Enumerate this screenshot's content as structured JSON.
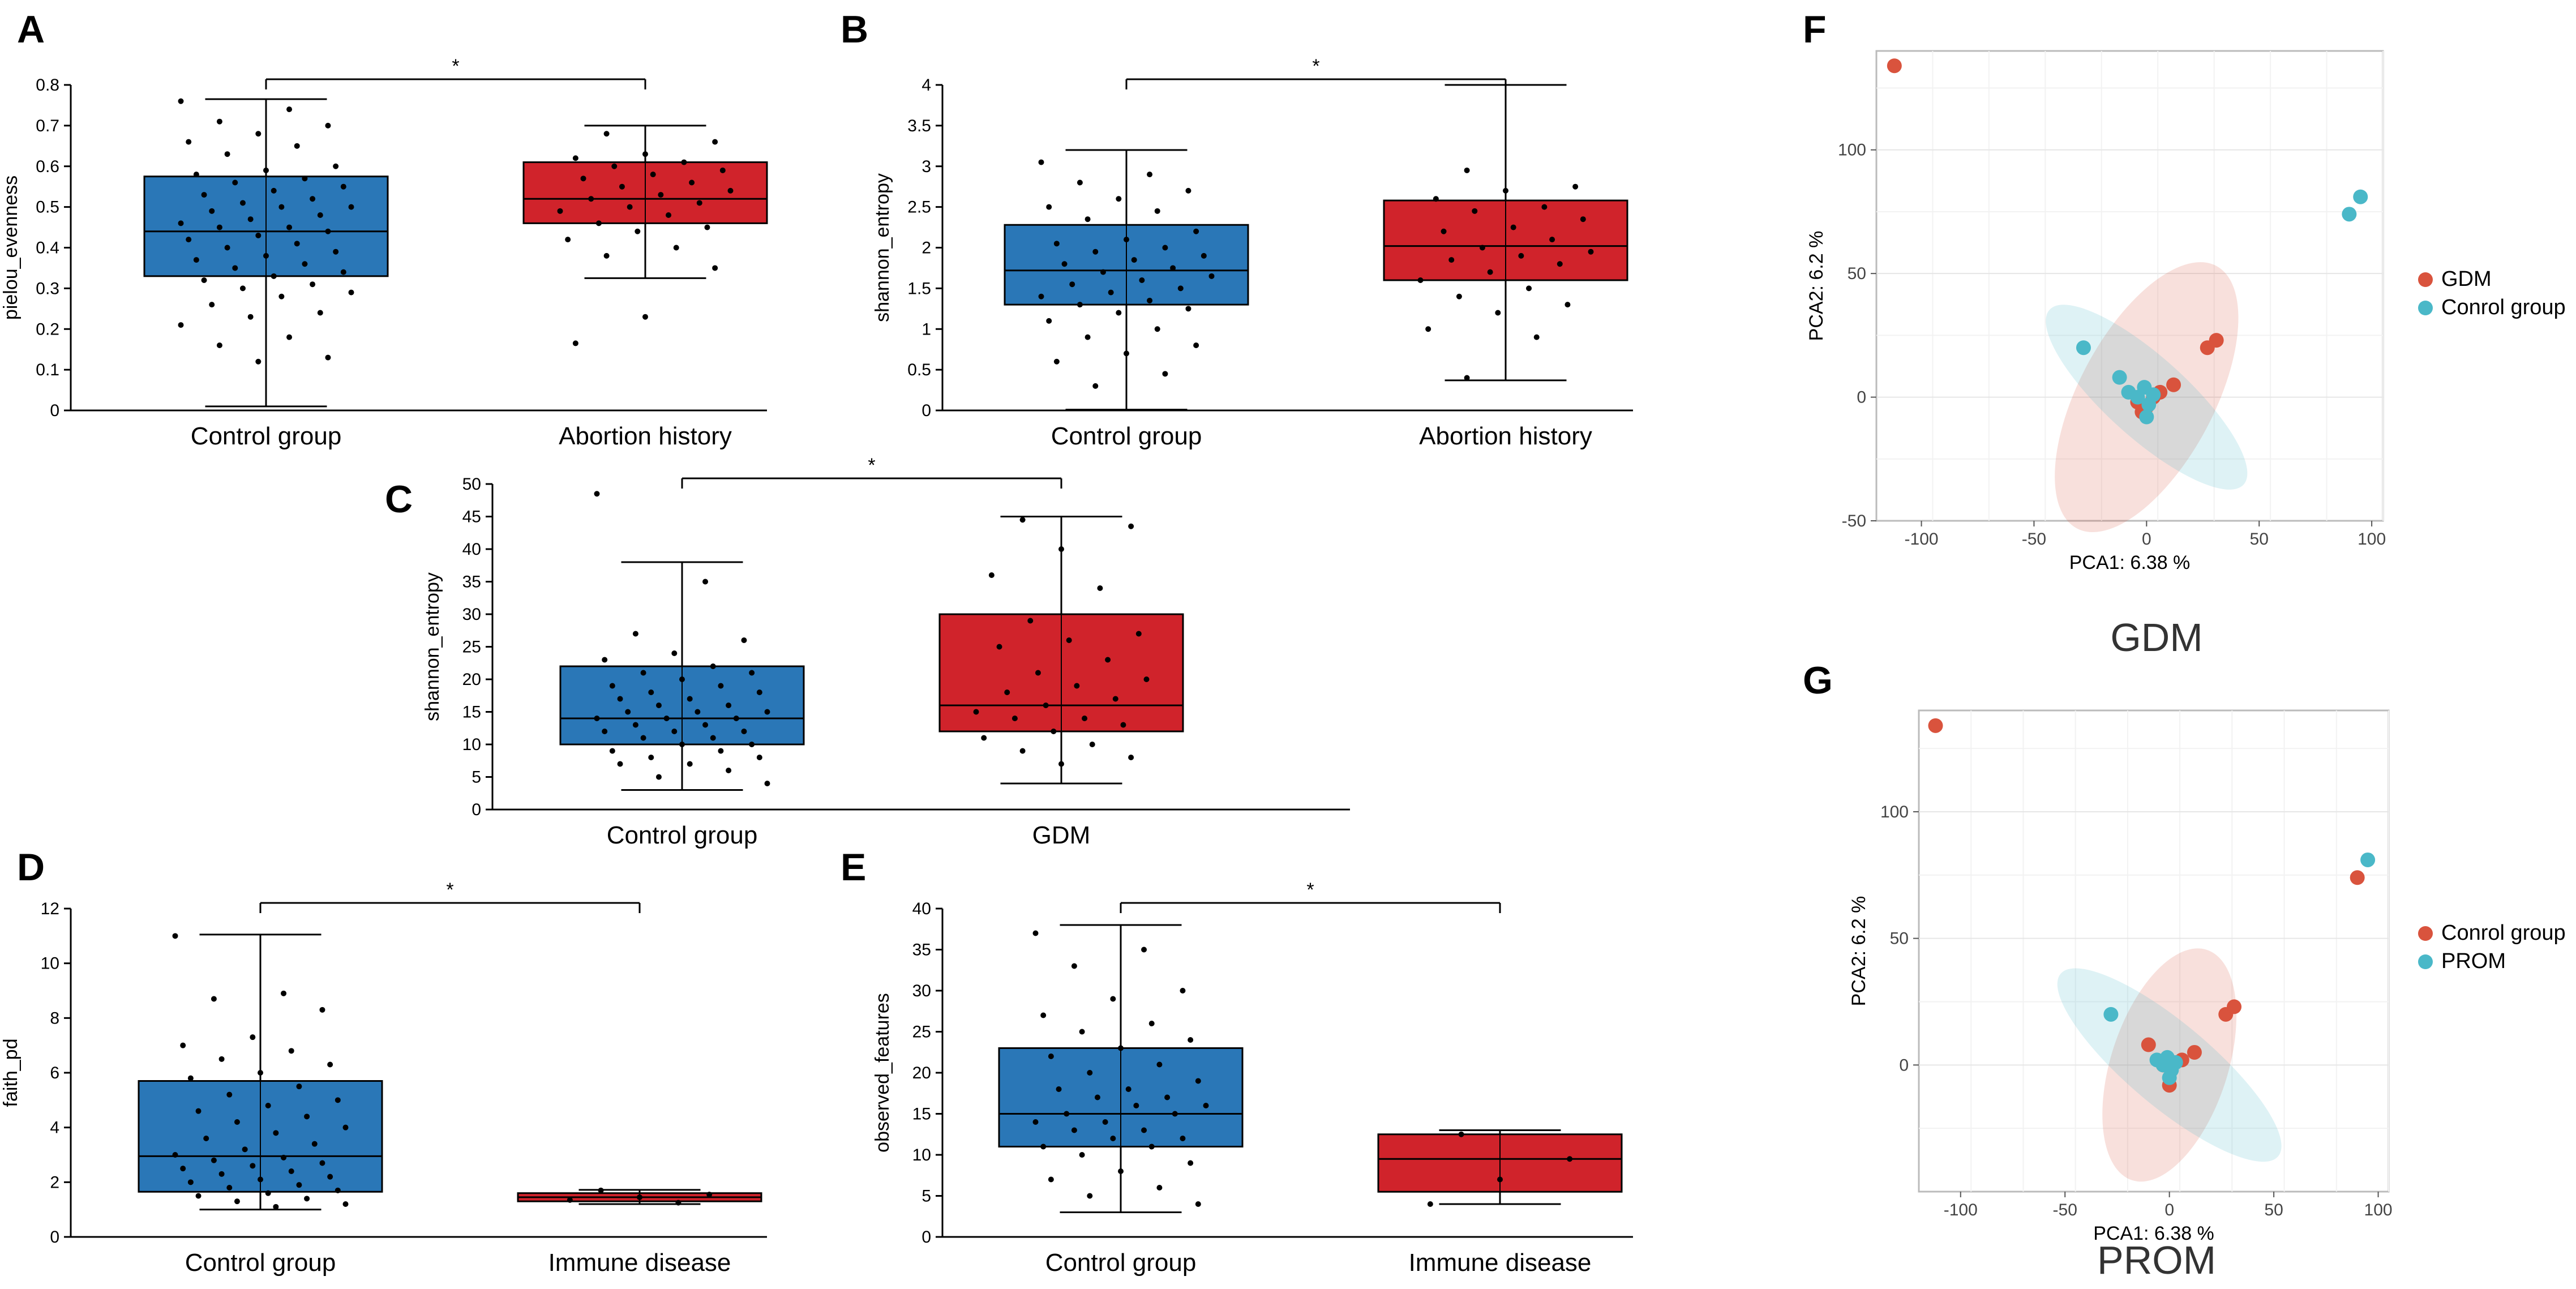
{
  "colors": {
    "control_blue": "#2a77b7",
    "case_red": "#d0232b",
    "pca_red": "#d9533d",
    "pca_teal": "#4ab8c8"
  },
  "chart_data": [
    {
      "id": "A",
      "type": "box",
      "label": "A",
      "ylabel": "pielou_evenness",
      "ylim": [
        0,
        0.8
      ],
      "yticks": [
        0,
        0.1,
        0.2,
        0.3,
        0.4,
        0.5,
        0.6,
        0.7,
        0.8
      ],
      "significance": "*",
      "groups": [
        {
          "name": "Control group",
          "color": "#2a77b7",
          "min": 0.01,
          "q1": 0.33,
          "median": 0.44,
          "q3": 0.575,
          "max": 0.765,
          "points": [
            0.76,
            0.74,
            0.71,
            0.7,
            0.68,
            0.66,
            0.65,
            0.63,
            0.6,
            0.59,
            0.58,
            0.57,
            0.56,
            0.55,
            0.54,
            0.53,
            0.52,
            0.51,
            0.5,
            0.5,
            0.49,
            0.48,
            0.47,
            0.46,
            0.45,
            0.45,
            0.44,
            0.43,
            0.42,
            0.41,
            0.4,
            0.39,
            0.38,
            0.37,
            0.36,
            0.35,
            0.34,
            0.33,
            0.32,
            0.31,
            0.3,
            0.29,
            0.28,
            0.26,
            0.24,
            0.23,
            0.21,
            0.18,
            0.16,
            0.13,
            0.12
          ]
        },
        {
          "name": "Abortion history",
          "color": "#d0232b",
          "min": 0.325,
          "q1": 0.46,
          "median": 0.52,
          "q3": 0.61,
          "max": 0.7,
          "points": [
            0.68,
            0.66,
            0.63,
            0.62,
            0.61,
            0.6,
            0.59,
            0.58,
            0.57,
            0.56,
            0.55,
            0.54,
            0.53,
            0.52,
            0.51,
            0.5,
            0.49,
            0.48,
            0.46,
            0.45,
            0.44,
            0.42,
            0.4,
            0.38,
            0.35,
            0.23,
            0.165
          ]
        }
      ]
    },
    {
      "id": "B",
      "type": "box",
      "label": "B",
      "ylabel": "shannon_entropy",
      "ylim": [
        0,
        4
      ],
      "yticks": [
        0,
        0.5,
        1,
        1.5,
        2,
        2.5,
        3,
        3.5,
        4
      ],
      "significance": "*",
      "groups": [
        {
          "name": "Control group",
          "color": "#2a77b7",
          "min": 0.01,
          "q1": 1.3,
          "median": 1.72,
          "q3": 2.28,
          "max": 3.2,
          "points": [
            3.05,
            2.9,
            2.8,
            2.7,
            2.6,
            2.5,
            2.45,
            2.35,
            2.2,
            2.1,
            2.05,
            2.0,
            1.95,
            1.9,
            1.85,
            1.8,
            1.75,
            1.7,
            1.65,
            1.6,
            1.55,
            1.5,
            1.45,
            1.4,
            1.35,
            1.3,
            1.25,
            1.2,
            1.1,
            1.0,
            0.9,
            0.8,
            0.7,
            0.6,
            0.45,
            0.3
          ]
        },
        {
          "name": "Abortion history",
          "color": "#d0232b",
          "min": 0.37,
          "q1": 1.6,
          "median": 2.02,
          "q3": 2.58,
          "max": 4.0,
          "points": [
            2.95,
            2.75,
            2.7,
            2.6,
            2.5,
            2.45,
            2.35,
            2.25,
            2.2,
            2.1,
            2.0,
            1.95,
            1.9,
            1.85,
            1.8,
            1.7,
            1.6,
            1.5,
            1.4,
            1.3,
            1.2,
            1.0,
            0.9,
            0.4
          ]
        }
      ]
    },
    {
      "id": "C",
      "type": "box",
      "label": "C",
      "ylabel": "shannon_entropy",
      "ylim": [
        0,
        50
      ],
      "yticks": [
        0,
        5,
        10,
        15,
        20,
        25,
        30,
        35,
        40,
        45,
        50
      ],
      "significance": "*",
      "groups": [
        {
          "name": "Control group",
          "color": "#2a77b7",
          "min": 3,
          "q1": 10,
          "median": 14,
          "q3": 22,
          "max": 38,
          "points": [
            48.5,
            35,
            27,
            26,
            24,
            23,
            22,
            21,
            21,
            20,
            19,
            19,
            18,
            18,
            17,
            17,
            16,
            16,
            15,
            15,
            15,
            14,
            14,
            14,
            13,
            13,
            12,
            12,
            12,
            11,
            11,
            10,
            10,
            9,
            9,
            8,
            8,
            7,
            7,
            6,
            5,
            4
          ]
        },
        {
          "name": "GDM",
          "color": "#d0232b",
          "min": 4,
          "q1": 12,
          "median": 16,
          "q3": 30,
          "max": 45,
          "points": [
            44.5,
            43.5,
            40,
            36,
            34,
            29,
            27,
            26,
            25,
            23,
            21,
            20,
            19,
            18,
            17,
            16,
            15,
            14,
            14,
            13,
            12,
            11,
            10,
            9,
            8,
            7
          ]
        }
      ]
    },
    {
      "id": "D",
      "type": "box",
      "label": "D",
      "ylabel": "faith_pd",
      "ylim": [
        0,
        12
      ],
      "yticks": [
        0,
        2,
        4,
        6,
        8,
        10,
        12
      ],
      "significance": "*",
      "groups": [
        {
          "name": "Control group",
          "color": "#2a77b7",
          "min": 1.0,
          "q1": 1.65,
          "median": 2.95,
          "q3": 5.7,
          "max": 11.05,
          "points": [
            11.0,
            8.9,
            8.7,
            8.3,
            7.3,
            7.0,
            6.8,
            6.5,
            6.3,
            6.0,
            5.8,
            5.5,
            5.2,
            5.0,
            4.8,
            4.6,
            4.4,
            4.2,
            4.0,
            3.8,
            3.6,
            3.4,
            3.2,
            3.0,
            2.9,
            2.8,
            2.7,
            2.6,
            2.5,
            2.4,
            2.3,
            2.2,
            2.1,
            2.0,
            1.9,
            1.8,
            1.7,
            1.6,
            1.5,
            1.4,
            1.3,
            1.2,
            1.1
          ]
        },
        {
          "name": "Immune disease",
          "color": "#d0232b",
          "min": 1.2,
          "q1": 1.3,
          "median": 1.45,
          "q3": 1.6,
          "max": 1.72,
          "points": [
            1.7,
            1.55,
            1.45,
            1.35,
            1.25
          ]
        }
      ]
    },
    {
      "id": "E",
      "type": "box",
      "label": "E",
      "ylabel": "observed_features",
      "ylim": [
        0,
        40
      ],
      "yticks": [
        0,
        5,
        10,
        15,
        20,
        25,
        30,
        35,
        40
      ],
      "significance": "*",
      "groups": [
        {
          "name": "Control group",
          "color": "#2a77b7",
          "min": 3,
          "q1": 11,
          "median": 15,
          "q3": 23,
          "max": 38,
          "points": [
            37,
            35,
            33,
            30,
            29,
            27,
            26,
            25,
            24,
            23,
            22,
            21,
            20,
            19,
            18,
            18,
            17,
            17,
            16,
            16,
            15,
            15,
            14,
            14,
            13,
            13,
            12,
            12,
            11,
            11,
            10,
            9,
            8,
            7,
            6,
            5,
            4
          ]
        },
        {
          "name": "Immune disease",
          "color": "#d0232b",
          "min": 4,
          "q1": 5.5,
          "median": 9.5,
          "q3": 12.5,
          "max": 13,
          "points": [
            12.5,
            9.5,
            7,
            4
          ]
        }
      ]
    },
    {
      "id": "F",
      "type": "scatter",
      "label": "F",
      "title": "GDM",
      "xlabel": "PCA1: 6.38 %",
      "ylabel": "PCA2: 6.2 %",
      "xlim": [
        -120,
        105
      ],
      "ylim": [
        -50,
        140
      ],
      "xticks": [
        -100,
        -50,
        0,
        50,
        100
      ],
      "yticks": [
        -50,
        0,
        50,
        100
      ],
      "series": [
        {
          "name": "GDM",
          "color": "#d9533d",
          "points": [
            [
              -112,
              134
            ],
            [
              27,
              20
            ],
            [
              31,
              23
            ],
            [
              12,
              5
            ],
            [
              6,
              2
            ],
            [
              3,
              0
            ],
            [
              0,
              -4
            ],
            [
              -2,
              -6
            ],
            [
              -4,
              -2
            ]
          ]
        },
        {
          "name": "Conrol group",
          "color": "#4ab8c8",
          "points": [
            [
              90,
              74
            ],
            [
              95,
              81
            ],
            [
              -28,
              20
            ],
            [
              -12,
              8
            ],
            [
              -8,
              2
            ],
            [
              -4,
              0
            ],
            [
              0,
              -8
            ],
            [
              1,
              -3
            ],
            [
              3,
              1
            ],
            [
              -1,
              4
            ]
          ]
        }
      ],
      "ellipses": [
        {
          "series": "GDM",
          "center": [
            0,
            0
          ],
          "rx": 66,
          "ry": 30,
          "angle": -62
        },
        {
          "series": "Conrol group",
          "center": [
            0,
            0
          ],
          "rx": 58,
          "ry": 18,
          "angle": 42
        }
      ]
    },
    {
      "id": "G",
      "type": "scatter",
      "label": "G",
      "title": "PROM",
      "xlabel": "PCA1: 6.38 %",
      "ylabel": "PCA2: 6.2 %",
      "xlim": [
        -120,
        105
      ],
      "ylim": [
        -50,
        140
      ],
      "xticks": [
        -100,
        -50,
        0,
        50,
        100
      ],
      "yticks": [
        0,
        50,
        100
      ],
      "series": [
        {
          "name": "Conrol group",
          "color": "#d9533d",
          "points": [
            [
              -112,
              134
            ],
            [
              90,
              74
            ],
            [
              27,
              20
            ],
            [
              31,
              23
            ],
            [
              -10,
              8
            ],
            [
              12,
              5
            ],
            [
              6,
              2
            ],
            [
              0,
              -8
            ],
            [
              -3,
              0
            ]
          ]
        },
        {
          "name": "PROM",
          "color": "#4ab8c8",
          "points": [
            [
              95,
              81
            ],
            [
              -28,
              20
            ],
            [
              -6,
              2
            ],
            [
              -3,
              0
            ],
            [
              0,
              -5
            ],
            [
              1,
              -2
            ],
            [
              3,
              1
            ],
            [
              -1,
              3
            ]
          ]
        }
      ],
      "ellipses": [
        {
          "series": "Conrol group",
          "center": [
            0,
            0
          ],
          "rx": 58,
          "ry": 28,
          "angle": -72
        },
        {
          "series": "PROM",
          "center": [
            0,
            0
          ],
          "rx": 68,
          "ry": 20,
          "angle": 40
        }
      ]
    }
  ]
}
